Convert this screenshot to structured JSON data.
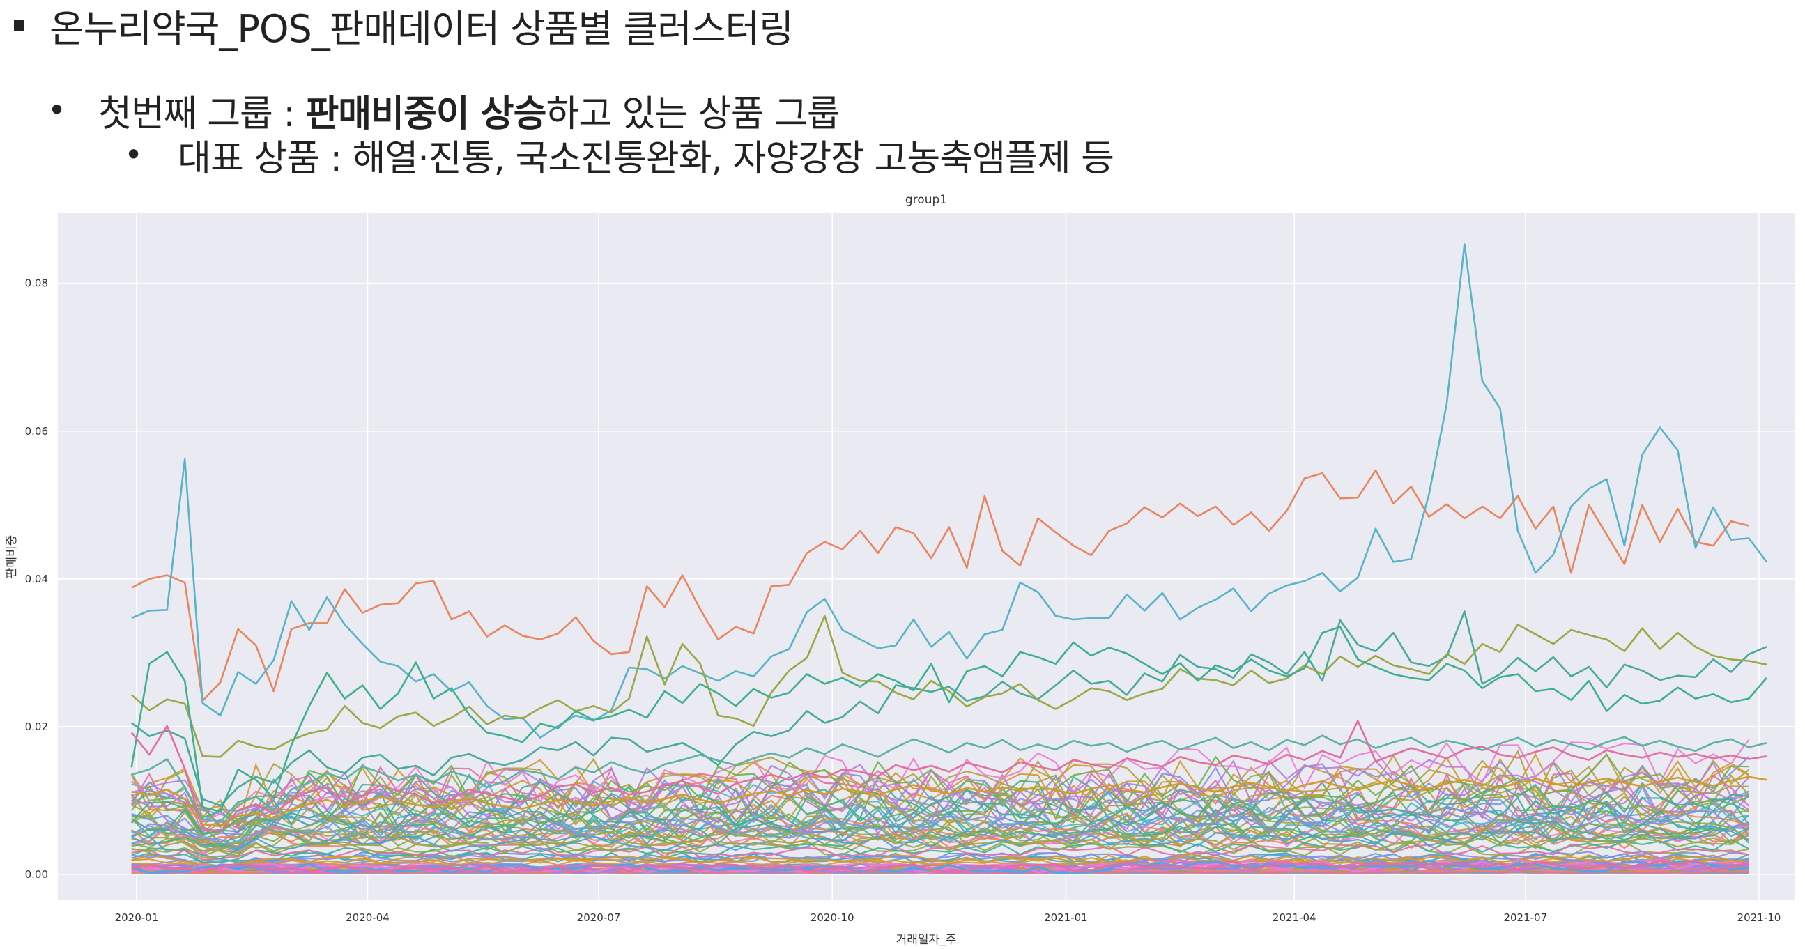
{
  "slide": {
    "title": "온누리약국_POS_판매데이터 상품별 클러스터링",
    "group_prefix": "첫번째 그룹 : ",
    "group_emphasis": "판매비중이 상승",
    "group_suffix": "하고 있는 상품 그룹",
    "representative": "대표 상품 : 해열·진통, 국소진통완화, 자양강장 고농축앰플제 등"
  },
  "chart_data": {
    "type": "line",
    "title": "group1",
    "xlabel": "거래일자_주",
    "ylabel": "판매비중",
    "x_start": "2019-12-30",
    "x_weeks": 92,
    "xlim": [
      "2019-12-01",
      "2021-10-15"
    ],
    "ylim": [
      -0.0035,
      0.0895
    ],
    "x_ticks": [
      "2020-01",
      "2020-04",
      "2020-07",
      "2020-10",
      "2021-01",
      "2021-04",
      "2021-07",
      "2021-10"
    ],
    "y_ticks": [
      "0.00",
      "0.02",
      "0.04",
      "0.06",
      "0.08"
    ],
    "grid": true,
    "legend": "none",
    "background": "#eaeaf2",
    "series": [
      {
        "color": "#e9855f",
        "values": [
          0.0388,
          0.04,
          0.0405,
          0.0395,
          0.0235,
          0.026,
          0.0332,
          0.031,
          0.0248,
          0.0332,
          0.034,
          0.034,
          0.0386,
          0.0354,
          0.0365,
          0.0367,
          0.0394,
          0.0397,
          0.0345,
          0.0356,
          0.0322,
          0.0337,
          0.0323,
          0.0318,
          0.0326,
          0.0348,
          0.0316,
          0.0298,
          0.0301,
          0.039,
          0.0362,
          0.0405,
          0.0359,
          0.0318,
          0.0335,
          0.0326,
          0.039,
          0.0392,
          0.0435,
          0.045,
          0.044,
          0.0465,
          0.0435,
          0.047,
          0.0462,
          0.0428,
          0.047,
          0.0415,
          0.0512,
          0.0438,
          0.0418,
          0.0482,
          0.0463,
          0.0445,
          0.0432,
          0.0465,
          0.0475,
          0.0497,
          0.0483,
          0.0502,
          0.0485,
          0.0498,
          0.0473,
          0.049,
          0.0465,
          0.0492,
          0.0536,
          0.0543,
          0.0509,
          0.051,
          0.0547,
          0.0502,
          0.0525,
          0.0484,
          0.0501,
          0.0482,
          0.0498,
          0.0482,
          0.0512,
          0.0468,
          0.0498,
          0.0408,
          0.05,
          0.046,
          0.042,
          0.05,
          0.045,
          0.0495,
          0.045,
          0.0445,
          0.0478,
          0.0472
        ]
      },
      {
        "color": "#5ab4c7",
        "values": [
          0.0347,
          0.0357,
          0.0358,
          0.0562,
          0.0232,
          0.0215,
          0.0274,
          0.0258,
          0.029,
          0.037,
          0.0331,
          0.0375,
          0.0338,
          0.0312,
          0.0288,
          0.0282,
          0.0261,
          0.0271,
          0.0248,
          0.026,
          0.0228,
          0.021,
          0.0212,
          0.0185,
          0.0201,
          0.0215,
          0.0208,
          0.0222,
          0.028,
          0.0278,
          0.0265,
          0.0282,
          0.0272,
          0.0262,
          0.0275,
          0.0268,
          0.0295,
          0.0305,
          0.0355,
          0.0373,
          0.0331,
          0.0318,
          0.0306,
          0.031,
          0.0345,
          0.0308,
          0.0328,
          0.0292,
          0.0325,
          0.0331,
          0.0395,
          0.0382,
          0.035,
          0.0345,
          0.0347,
          0.0347,
          0.0379,
          0.0357,
          0.0381,
          0.0345,
          0.0361,
          0.0372,
          0.0387,
          0.0356,
          0.038,
          0.0391,
          0.0397,
          0.0408,
          0.0383,
          0.0402,
          0.0468,
          0.0423,
          0.0427,
          0.0514,
          0.0637,
          0.0853,
          0.0668,
          0.0631,
          0.0465,
          0.0408,
          0.0433,
          0.0498,
          0.0522,
          0.0535,
          0.0445,
          0.0568,
          0.0605,
          0.0574,
          0.0442,
          0.0497,
          0.0453,
          0.0455,
          0.0423
        ]
      },
      {
        "color": "#49aa9b",
        "values": [
          0.0205,
          0.0187,
          0.0195,
          0.0184,
          0.0102,
          0.0093,
          0.0118,
          0.0132,
          0.0124,
          0.0151,
          0.0168,
          0.0145,
          0.0137,
          0.0158,
          0.0162,
          0.0143,
          0.0147,
          0.0134,
          0.0158,
          0.0163,
          0.0152,
          0.0148,
          0.0155,
          0.0172,
          0.0168,
          0.0179,
          0.0161,
          0.0185,
          0.0183,
          0.0166,
          0.0172,
          0.0178,
          0.0165,
          0.0148,
          0.0176,
          0.0193,
          0.0187,
          0.0195,
          0.0221,
          0.0205,
          0.0213,
          0.0234,
          0.0218,
          0.0256,
          0.0252,
          0.0247,
          0.0254,
          0.0235,
          0.0241,
          0.0261,
          0.0245,
          0.0237,
          0.0256,
          0.0276,
          0.0258,
          0.0262,
          0.0243,
          0.0272,
          0.0261,
          0.0297,
          0.0281,
          0.0278,
          0.0266,
          0.0298,
          0.0287,
          0.0271,
          0.0301,
          0.0262,
          0.0344,
          0.0311,
          0.0302,
          0.0327,
          0.0287,
          0.0282,
          0.0295,
          0.0356,
          0.0258,
          0.0271,
          0.0293,
          0.0275,
          0.0294,
          0.0268,
          0.0281,
          0.0253,
          0.0284,
          0.0276,
          0.0263,
          0.0269,
          0.0267,
          0.0291,
          0.0274,
          0.0298,
          0.0308
        ]
      },
      {
        "color": "#9aa845",
        "values": [
          0.0243,
          0.0222,
          0.0237,
          0.0231,
          0.016,
          0.0159,
          0.0181,
          0.0173,
          0.0169,
          0.0182,
          0.0191,
          0.0196,
          0.0228,
          0.0205,
          0.0198,
          0.0214,
          0.0219,
          0.0201,
          0.0212,
          0.0227,
          0.0203,
          0.0215,
          0.0211,
          0.0225,
          0.0236,
          0.0221,
          0.0228,
          0.0219,
          0.0238,
          0.0322,
          0.0257,
          0.0312,
          0.0285,
          0.0215,
          0.0211,
          0.0201,
          0.0246,
          0.0276,
          0.0293,
          0.035,
          0.0273,
          0.0262,
          0.0261,
          0.0246,
          0.0237,
          0.0262,
          0.0248,
          0.0227,
          0.024,
          0.0245,
          0.0258,
          0.0236,
          0.0224,
          0.0237,
          0.0252,
          0.0248,
          0.0236,
          0.0245,
          0.0251,
          0.0278,
          0.0265,
          0.0263,
          0.0256,
          0.0276,
          0.0259,
          0.0265,
          0.0283,
          0.0271,
          0.0295,
          0.0281,
          0.0296,
          0.0283,
          0.0278,
          0.0271,
          0.0298,
          0.0285,
          0.0312,
          0.0301,
          0.0338,
          0.0325,
          0.0312,
          0.0331,
          0.0324,
          0.0318,
          0.0302,
          0.0333,
          0.0305,
          0.0327,
          0.0308,
          0.0296,
          0.0291,
          0.0289,
          0.0284
        ]
      },
      {
        "color": "#3fb08f",
        "values": [
          0.0145,
          0.0285,
          0.0301,
          0.0262,
          0.0091,
          0.0085,
          0.0142,
          0.0128,
          0.0103,
          0.0175,
          0.0228,
          0.0273,
          0.0238,
          0.0256,
          0.0224,
          0.0245,
          0.0287,
          0.0238,
          0.0252,
          0.0216,
          0.0192,
          0.0187,
          0.0179,
          0.0204,
          0.0198,
          0.0221,
          0.0209,
          0.0214,
          0.0223,
          0.0212,
          0.0248,
          0.0232,
          0.0258,
          0.0245,
          0.0228,
          0.0251,
          0.0239,
          0.0246,
          0.0271,
          0.0258,
          0.0266,
          0.0254,
          0.0271,
          0.0262,
          0.0249,
          0.0285,
          0.0233,
          0.0275,
          0.0282,
          0.0268,
          0.0301,
          0.0294,
          0.0285,
          0.0314,
          0.0296,
          0.0307,
          0.0299,
          0.0285,
          0.0271,
          0.0286,
          0.0262,
          0.0283,
          0.0275,
          0.0291,
          0.0276,
          0.0268,
          0.0279,
          0.0327,
          0.0335,
          0.0291,
          0.0281,
          0.0271,
          0.0266,
          0.0263,
          0.0285,
          0.0276,
          0.0252,
          0.0267,
          0.0271,
          0.0248,
          0.0251,
          0.0236,
          0.0262,
          0.0221,
          0.0243,
          0.0231,
          0.0235,
          0.0253,
          0.0238,
          0.0244,
          0.0233,
          0.0238,
          0.0266
        ]
      },
      {
        "color": "#5db3a2",
        "values": [
          0.0135,
          0.0142,
          0.0156,
          0.0118,
          0.0075,
          0.0071,
          0.0098,
          0.0105,
          0.0087,
          0.0115,
          0.0124,
          0.0137,
          0.0129,
          0.0146,
          0.0138,
          0.0127,
          0.0135,
          0.0125,
          0.0139,
          0.0132,
          0.0118,
          0.0126,
          0.0141,
          0.0137,
          0.0129,
          0.0145,
          0.0138,
          0.0152,
          0.0143,
          0.0137,
          0.0149,
          0.0155,
          0.0162,
          0.0154,
          0.0148,
          0.0157,
          0.0164,
          0.0158,
          0.0171,
          0.0163,
          0.0176,
          0.0168,
          0.0159,
          0.0172,
          0.0183,
          0.0175,
          0.0165,
          0.0178,
          0.0171,
          0.0182,
          0.0168,
          0.0176,
          0.0169,
          0.0181,
          0.0174,
          0.0178,
          0.0166,
          0.0175,
          0.0181,
          0.0169,
          0.0177,
          0.0185,
          0.0171,
          0.0179,
          0.0168,
          0.0182,
          0.0175,
          0.0188,
          0.0176,
          0.0183,
          0.0171,
          0.0179,
          0.0185,
          0.0172,
          0.0181,
          0.0176,
          0.0168,
          0.0177,
          0.0185,
          0.0173,
          0.0182,
          0.0176,
          0.0169,
          0.0179,
          0.0186,
          0.0174,
          0.0181,
          0.0173,
          0.0167,
          0.0178,
          0.0183,
          0.0172,
          0.0178
        ]
      },
      {
        "color": "#e26fa0",
        "values": [
          0.0192,
          0.0162,
          0.0201,
          0.0143,
          0.0062,
          0.0058,
          0.0087,
          0.0095,
          0.0082,
          0.0101,
          0.0112,
          0.0118,
          0.0097,
          0.0106,
          0.0121,
          0.0113,
          0.0108,
          0.0096,
          0.0102,
          0.0115,
          0.0109,
          0.0104,
          0.0098,
          0.0106,
          0.0119,
          0.0122,
          0.0111,
          0.0117,
          0.0108,
          0.0112,
          0.0121,
          0.0126,
          0.0118,
          0.0109,
          0.0123,
          0.0129,
          0.0135,
          0.0128,
          0.0138,
          0.0131,
          0.0142,
          0.0139,
          0.0133,
          0.0148,
          0.0141,
          0.0147,
          0.0139,
          0.0151,
          0.0145,
          0.0138,
          0.0152,
          0.0146,
          0.0141,
          0.0155,
          0.0149,
          0.0144,
          0.0157,
          0.0151,
          0.0146,
          0.0159,
          0.0152,
          0.0148,
          0.0161,
          0.0156,
          0.0149,
          0.0162,
          0.0155,
          0.0167,
          0.0158,
          0.0208,
          0.0153,
          0.0162,
          0.0171,
          0.0164,
          0.0157,
          0.0169,
          0.0173,
          0.0162,
          0.0158,
          0.0166,
          0.0172,
          0.0161,
          0.0155,
          0.0168,
          0.0162,
          0.0158,
          0.0165,
          0.0159,
          0.0163,
          0.0157,
          0.0161,
          0.0156,
          0.016
        ]
      },
      {
        "color": "#d39a2e",
        "values": [
          0.0112,
          0.0108,
          0.0115,
          0.0102,
          0.0068,
          0.0065,
          0.0079,
          0.0083,
          0.0076,
          0.0088,
          0.0095,
          0.0101,
          0.0092,
          0.0098,
          0.0105,
          0.0099,
          0.0094,
          0.0091,
          0.0097,
          0.0103,
          0.0096,
          0.0092,
          0.0089,
          0.0095,
          0.0101,
          0.0098,
          0.0093,
          0.0099,
          0.0104,
          0.0097,
          0.0102,
          0.0108,
          0.0101,
          0.0096,
          0.0103,
          0.0109,
          0.0113,
          0.0107,
          0.0114,
          0.0109,
          0.0116,
          0.0112,
          0.0108,
          0.0115,
          0.0121,
          0.0114,
          0.0109,
          0.0117,
          0.0112,
          0.0118,
          0.0113,
          0.0119,
          0.0114,
          0.0109,
          0.0116,
          0.0121,
          0.0115,
          0.0111,
          0.0118,
          0.0123,
          0.0117,
          0.0112,
          0.0119,
          0.0124,
          0.0118,
          0.0113,
          0.0121,
          0.0126,
          0.0119,
          0.0114,
          0.0122,
          0.0127,
          0.0121,
          0.0116,
          0.0123,
          0.0128,
          0.0122,
          0.0117,
          0.0124,
          0.0129,
          0.0123,
          0.0118,
          0.0125,
          0.013,
          0.0124,
          0.0119,
          0.0126,
          0.0131,
          0.0125,
          0.012,
          0.0127,
          0.0132,
          0.0128
        ]
      }
    ],
    "band": {
      "note": "dense cluster of many overlapping low-share product lines",
      "colors": [
        "#e9855f",
        "#d39a2e",
        "#b4a23a",
        "#9aa845",
        "#6fb04a",
        "#3fb08f",
        "#49aa9b",
        "#5ab4c7",
        "#4f9fd6",
        "#8a8fe0",
        "#b97ad6",
        "#e26fa0",
        "#f07ad0"
      ],
      "level_low": 0.0002,
      "level_high": 0.012
    }
  }
}
